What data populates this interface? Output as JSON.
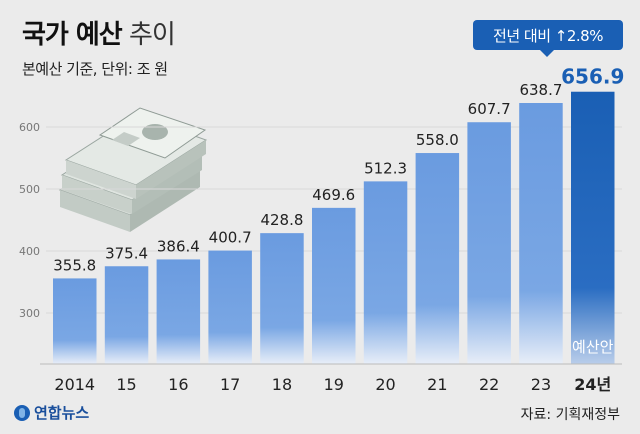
{
  "title_bold": "국가 예산",
  "title_light": "추이",
  "subtitle": "본예산 기준, 단위: 조 원",
  "badge": "전년 대비 ↑2.8%",
  "budget_plan_label": "예산안",
  "source": "자료: 기획재정부",
  "logo": "연합뉴스",
  "chart_data": {
    "type": "bar",
    "categories": [
      "2014",
      "15",
      "16",
      "17",
      "18",
      "19",
      "20",
      "21",
      "22",
      "23",
      "24년"
    ],
    "values": [
      355.8,
      375.4,
      386.4,
      400.7,
      428.8,
      469.6,
      512.3,
      558.0,
      607.7,
      638.7,
      656.9
    ],
    "value_labels": [
      "355.8",
      "375.4",
      "386.4",
      "400.7",
      "428.8",
      "469.6",
      "512.3",
      "558.0",
      "607.7",
      "638.7",
      "656.9"
    ],
    "yticks": [
      "300",
      "400",
      "500",
      "600"
    ],
    "ylim": [
      250,
      700
    ],
    "highlight_index": 10,
    "colors": {
      "bar": "#6a9be0",
      "highlight": "#1a5fb4",
      "bar_fade": "#e8eef8"
    }
  }
}
